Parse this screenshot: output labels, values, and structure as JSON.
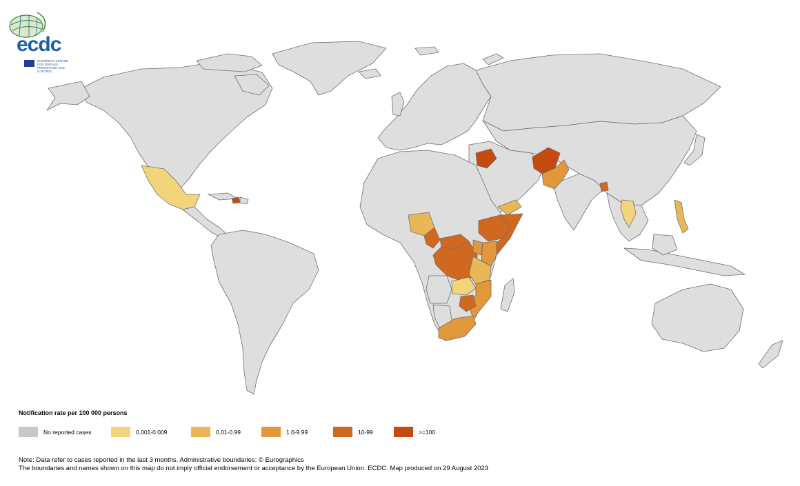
{
  "logo": {
    "wordmark": "ecdc",
    "subtitle": "EUROPEAN CENTRE FOR DISEASE PREVENTION AND CONTROL"
  },
  "legend": {
    "title": "Notification rate per 100 000 persons",
    "items": [
      {
        "label": "No reported cases",
        "color": "#c8c8c8"
      },
      {
        "label": "0.001-0.009",
        "color": "#f2d57b"
      },
      {
        "label": "0.01-0.99",
        "color": "#eab756"
      },
      {
        "label": "1.0-9.99",
        "color": "#e2983a"
      },
      {
        "label": "10-99",
        "color": "#d0691f"
      },
      {
        "label": ">=100",
        "color": "#c44a10"
      }
    ]
  },
  "colors": {
    "land": "#dedede",
    "border": "#6e6e6e"
  },
  "note": {
    "line1": "Note: Data refer to cases reported in the last 3 months. Administrative boundaries: © Eurographics",
    "line2": "The boundaries and names shown on this map do not imply official endorsement or acceptance by the European Union. ECDC. Map produced on 29 August 2023"
  }
}
